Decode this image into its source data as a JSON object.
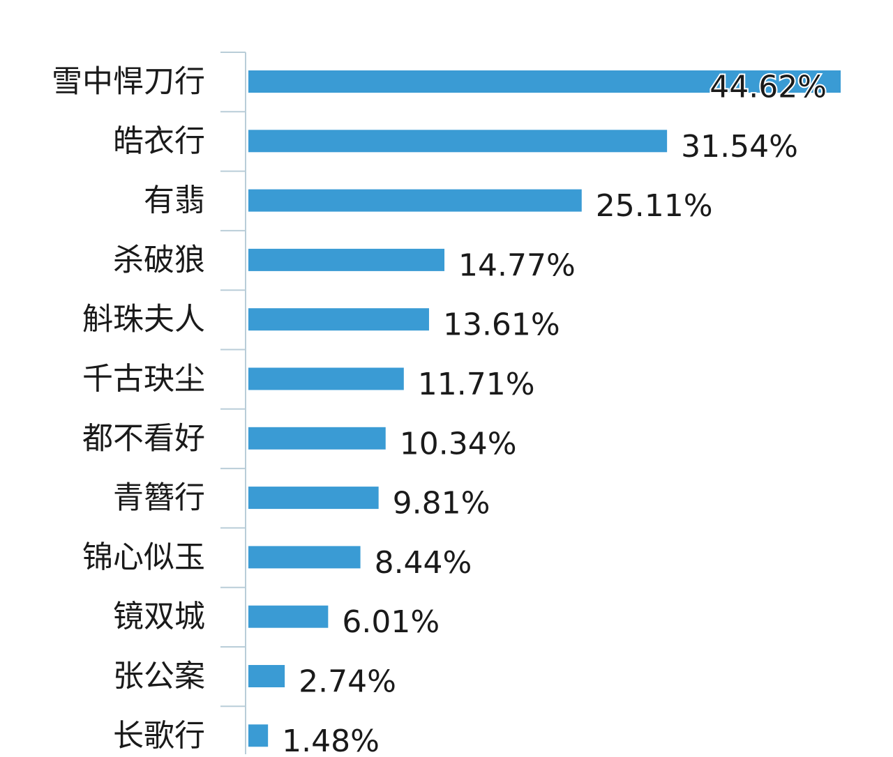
{
  "chart_data": {
    "type": "bar",
    "orientation": "horizontal",
    "categories": [
      "雪中悍刀行",
      "皓衣行",
      "有翡",
      "杀破狼",
      "斛珠夫人",
      "千古玦尘",
      "都不看好",
      "青簪行",
      "锦心似玉",
      "镜双城",
      "张公案",
      "长歌行"
    ],
    "values": [
      44.62,
      31.54,
      25.11,
      14.77,
      13.61,
      11.71,
      10.34,
      9.81,
      8.44,
      6.01,
      2.74,
      1.48
    ],
    "value_labels": [
      "44.62%",
      "31.54%",
      "25.11%",
      "14.77%",
      "13.61%",
      "11.71%",
      "10.34%",
      "9.81%",
      "8.44%",
      "6.01%",
      "2.74%",
      "1.48%"
    ],
    "unit": "%",
    "bar_color": "#3a9bd4",
    "axis_color": "#b9cdd8",
    "text_color": "#1a1a1a",
    "label_outline_color": "#ffffff",
    "title": "",
    "xlabel": "",
    "ylabel": "",
    "grid": false,
    "legend": "none"
  }
}
